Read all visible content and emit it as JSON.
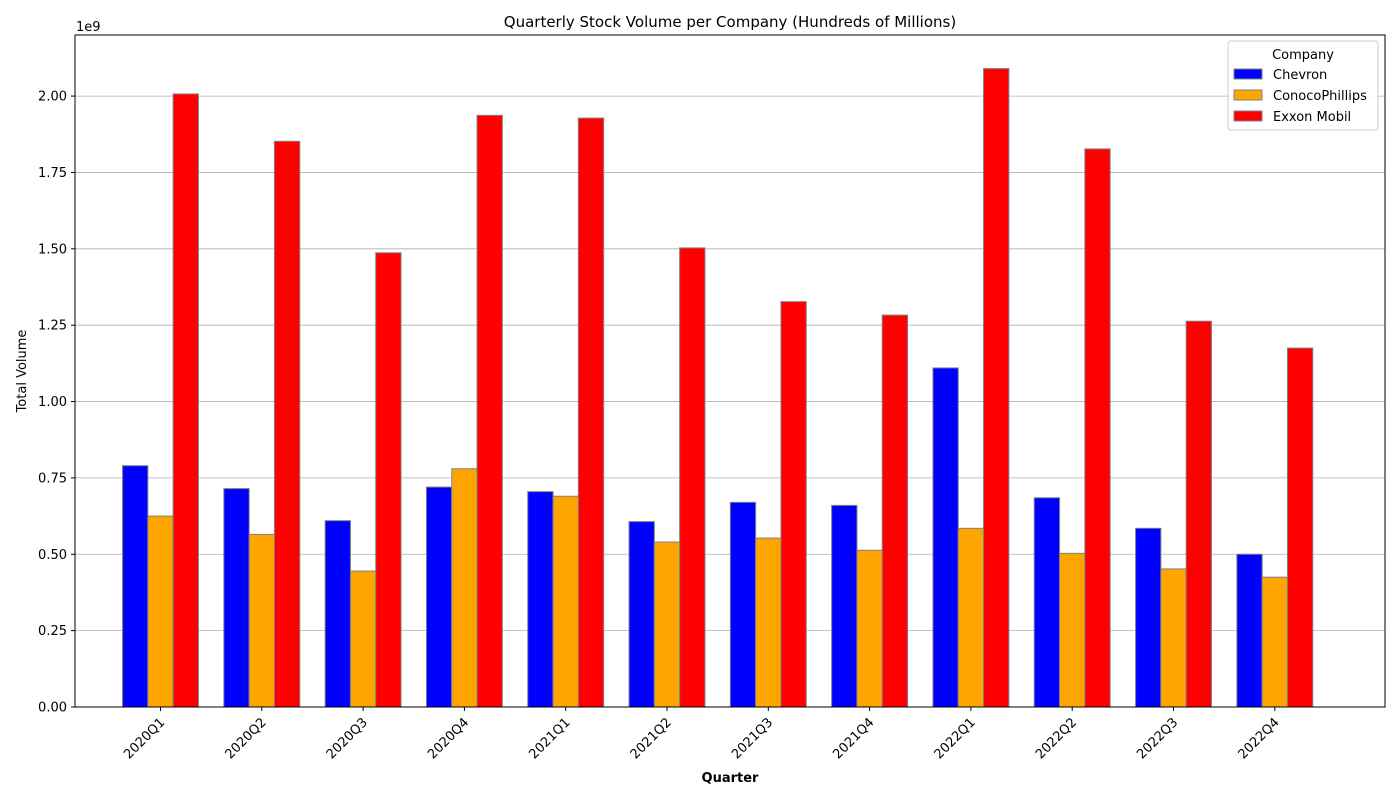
{
  "chart_data": {
    "type": "bar",
    "title": "Quarterly Stock Volume per Company (Hundreds of Millions)",
    "xlabel": "Quarter",
    "ylabel": "Total Volume",
    "offset_label": "1e9",
    "categories": [
      "2020Q1",
      "2020Q2",
      "2020Q3",
      "2020Q4",
      "2021Q1",
      "2021Q2",
      "2021Q3",
      "2021Q4",
      "2022Q1",
      "2022Q2",
      "2022Q3",
      "2022Q4"
    ],
    "ylim": [
      0,
      2.2
    ],
    "yticks": [
      0.0,
      0.25,
      0.5,
      0.75,
      1.0,
      1.25,
      1.5,
      1.75,
      2.0
    ],
    "ytick_labels": [
      "0.00",
      "0.25",
      "0.50",
      "0.75",
      "1.00",
      "1.25",
      "1.50",
      "1.75",
      "2.00"
    ],
    "grid": "y",
    "legend": {
      "title": "Company",
      "position": "top-right"
    },
    "series": [
      {
        "name": "Chevron",
        "color": "#0000ff",
        "values": [
          0.79,
          0.715,
          0.61,
          0.72,
          0.705,
          0.607,
          0.67,
          0.66,
          1.11,
          0.685,
          0.585,
          0.5
        ]
      },
      {
        "name": "ConocoPhillips",
        "color": "#ffa500",
        "values": [
          0.625,
          0.565,
          0.445,
          0.78,
          0.69,
          0.54,
          0.553,
          0.513,
          0.585,
          0.503,
          0.452,
          0.425
        ]
      },
      {
        "name": "Exxon Mobil",
        "color": "#ff0000",
        "values": [
          2.007,
          1.852,
          1.487,
          1.937,
          1.928,
          1.503,
          1.327,
          1.283,
          2.09,
          1.827,
          1.263,
          1.175
        ]
      }
    ]
  }
}
